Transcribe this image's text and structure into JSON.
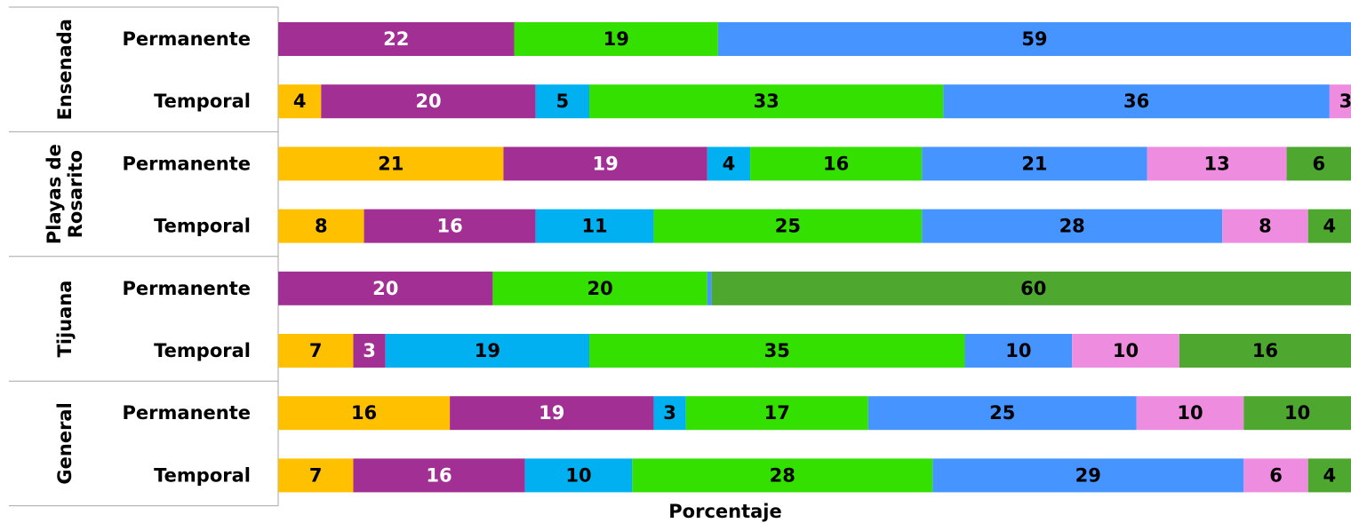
{
  "chart_data": {
    "type": "bar",
    "orientation": "horizontal",
    "stacked": true,
    "xlabel": "Porcentaje",
    "xlim": [
      0,
      100
    ],
    "grid": false,
    "legend": "none",
    "groups": [
      {
        "name": "Ensenada",
        "name_lines": [
          "Ensenada"
        ],
        "rows": [
          {
            "label": "Permanente",
            "values": [
              0,
              22,
              0,
              19,
              59,
              0,
              0
            ]
          },
          {
            "label": "Temporal",
            "values": [
              4,
              20,
              5,
              33,
              36,
              3,
              0
            ]
          }
        ]
      },
      {
        "name": "Playas de Rosarito",
        "name_lines": [
          "Playas de",
          "Rosarito"
        ],
        "rows": [
          {
            "label": "Permanente",
            "values": [
              21,
              19,
              4,
              16,
              21,
              13,
              6
            ]
          },
          {
            "label": "Temporal",
            "values": [
              8,
              16,
              11,
              25,
              28,
              8,
              4
            ]
          }
        ]
      },
      {
        "name": "Tijuana",
        "name_lines": [
          "Tijuana"
        ],
        "rows": [
          {
            "label": "Permanente",
            "values": [
              0,
              20,
              0,
              20,
              0.4,
              0,
              60
            ]
          },
          {
            "label": "Temporal",
            "values": [
              7,
              3,
              19,
              35,
              10,
              10,
              16
            ]
          }
        ]
      },
      {
        "name": "General",
        "name_lines": [
          "General"
        ],
        "rows": [
          {
            "label": "Permanente",
            "values": [
              16,
              19,
              3,
              17,
              25,
              10,
              10
            ]
          },
          {
            "label": "Temporal",
            "values": [
              7,
              16,
              10,
              28,
              29,
              6,
              4
            ]
          }
        ]
      }
    ],
    "segment_colors": [
      "#ffc000",
      "#a23094",
      "#00b0f0",
      "#33e000",
      "#4594ff",
      "#ee8ce0",
      "#4ea72e"
    ],
    "label_colors": [
      "#000000",
      "#ffffff",
      "#000000",
      "#000000",
      "#000000",
      "#000000",
      "#000000"
    ]
  }
}
